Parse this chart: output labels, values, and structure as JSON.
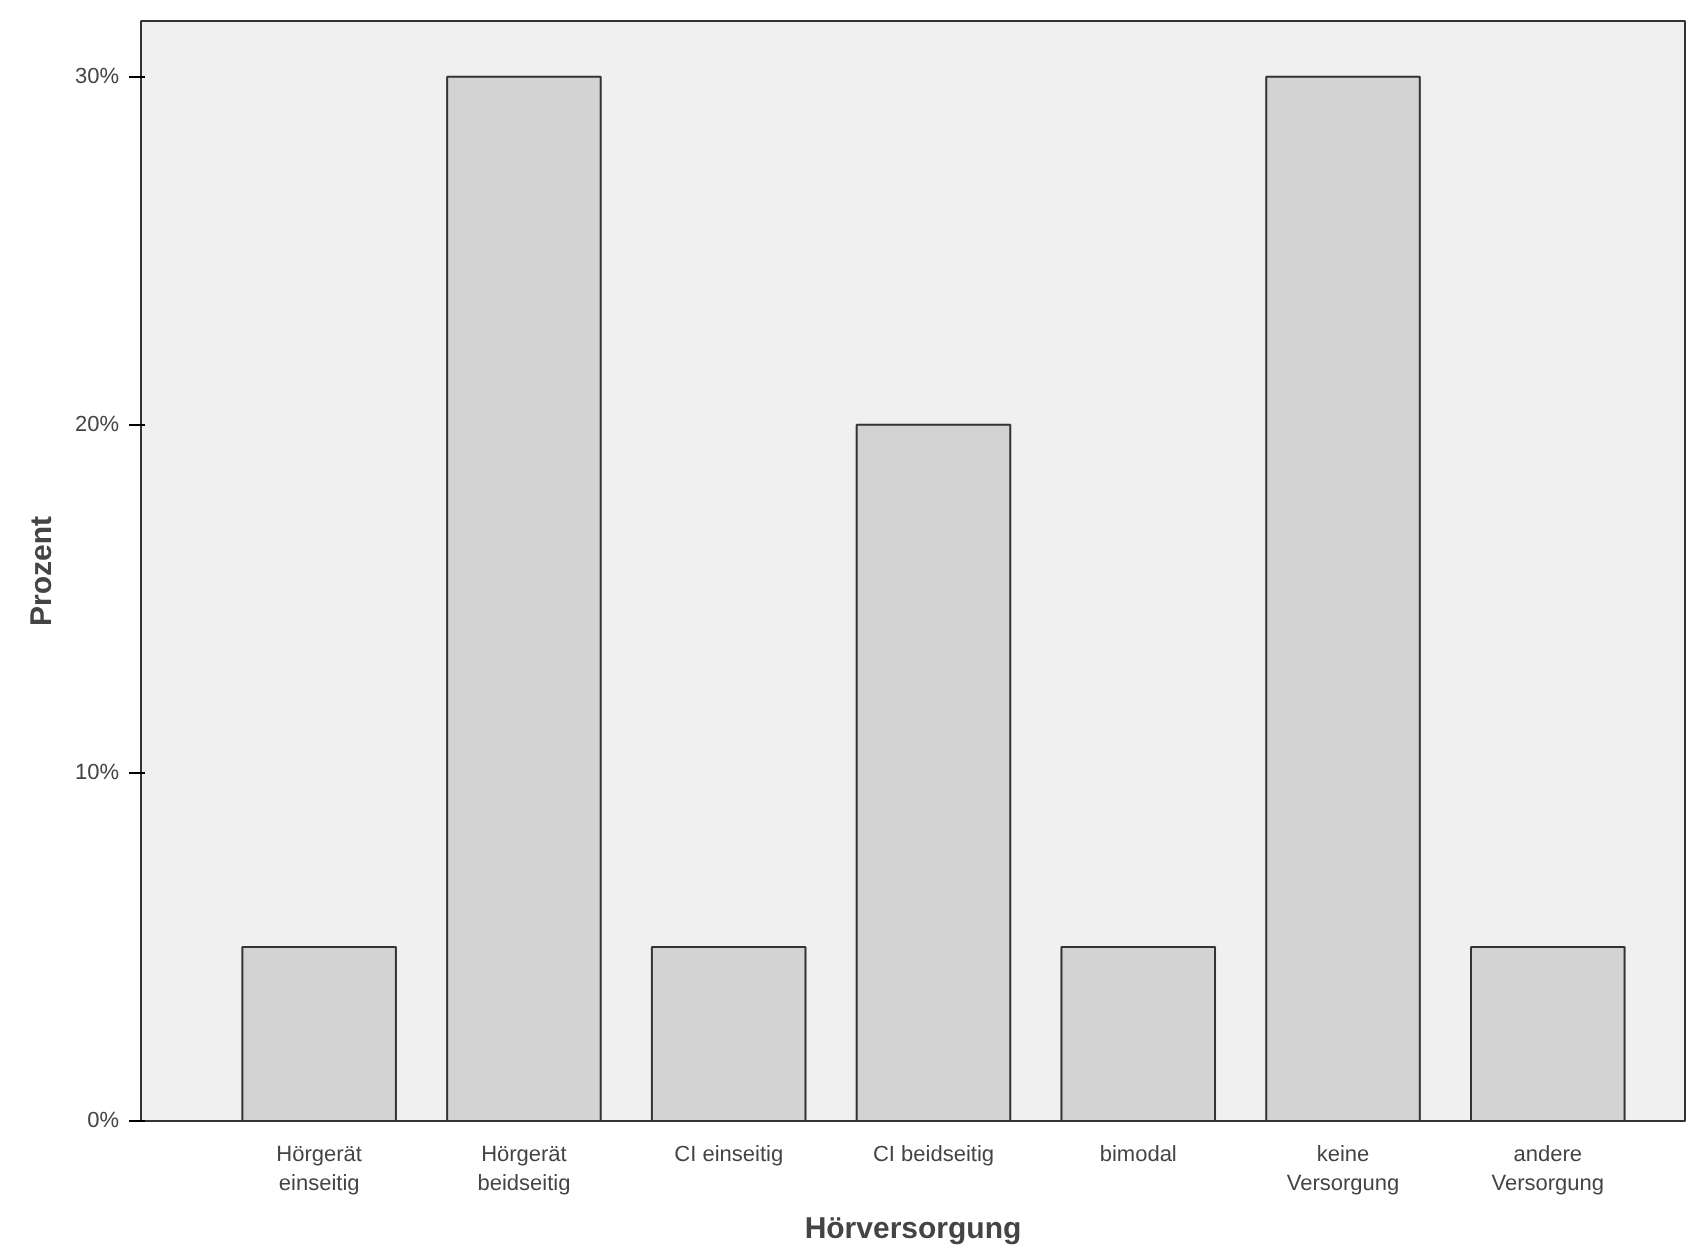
{
  "chart_data": {
    "type": "bar",
    "xlabel": "Hörversorgung",
    "ylabel": "Prozent",
    "categories": [
      "Hörgerät\neinseitig",
      "Hörgerät\nbeidseitig",
      "CI einseitig",
      "CI beidseitig",
      "bimodal",
      "keine\nVersorgung",
      "andere\nVersorgung"
    ],
    "values": [
      5,
      30,
      5,
      20,
      5,
      30,
      5
    ],
    "color": "#d3d3d3",
    "ylim": [
      0,
      31.6
    ],
    "yticks": [
      {
        "value": 0,
        "label": "0%"
      },
      {
        "value": 10,
        "label": "10%"
      },
      {
        "value": 20,
        "label": "20%"
      },
      {
        "value": 30,
        "label": "30%"
      }
    ],
    "grid": false
  }
}
